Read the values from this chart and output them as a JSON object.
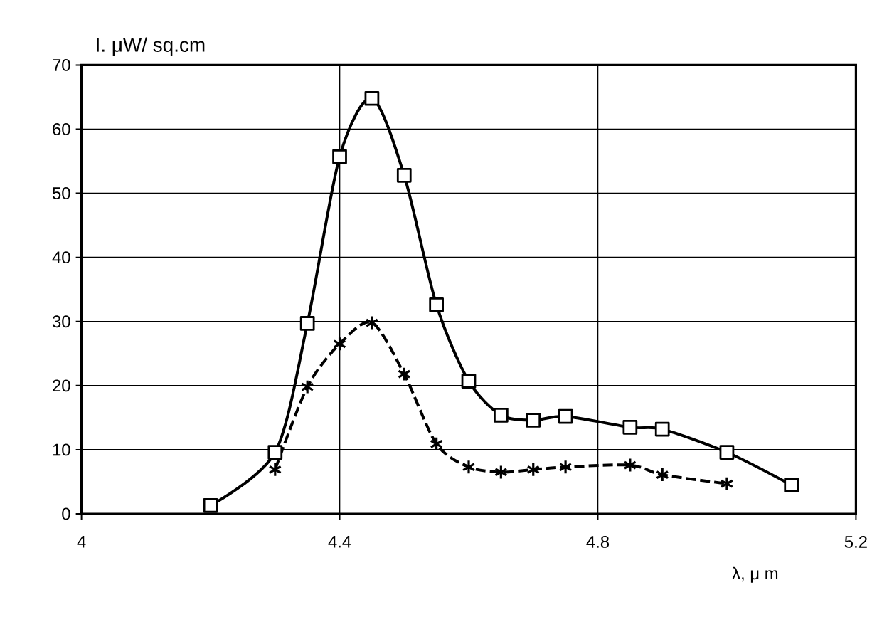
{
  "chart_data": {
    "type": "line",
    "xlabel": "λ, μ m",
    "ylabel": "I. μW/ sq.cm",
    "xlim": [
      4,
      5.2
    ],
    "xticks": [
      4,
      4.4,
      4.8,
      5.2
    ],
    "ylim": [
      0,
      70
    ],
    "yticks": [
      0,
      10,
      20,
      30,
      40,
      50,
      60,
      70
    ],
    "grid": true,
    "series": [
      {
        "color": "#000000",
        "marker": "cross",
        "line_style": "dashed",
        "x": [
          4.3,
          4.35,
          4.4,
          4.45,
          4.5,
          4.55,
          4.6,
          4.65,
          4.7,
          4.75,
          4.85,
          4.9,
          5.0
        ],
        "values": [
          6.9,
          19.8,
          26.5,
          29.8,
          21.8,
          10.9,
          7.3,
          6.5,
          6.9,
          7.3,
          7.6,
          6.1,
          4.7
        ]
      },
      {
        "color": "#000000",
        "marker": "square",
        "line_style": "solid",
        "x": [
          4.2,
          4.3,
          4.35,
          4.4,
          4.45,
          4.5,
          4.55,
          4.6,
          4.65,
          4.7,
          4.75,
          4.85,
          4.9,
          5.0,
          5.1
        ],
        "values": [
          1.3,
          9.6,
          29.7,
          55.7,
          64.8,
          52.8,
          32.6,
          20.7,
          15.4,
          14.6,
          15.2,
          13.5,
          13.2,
          9.6,
          4.5
        ]
      }
    ]
  }
}
